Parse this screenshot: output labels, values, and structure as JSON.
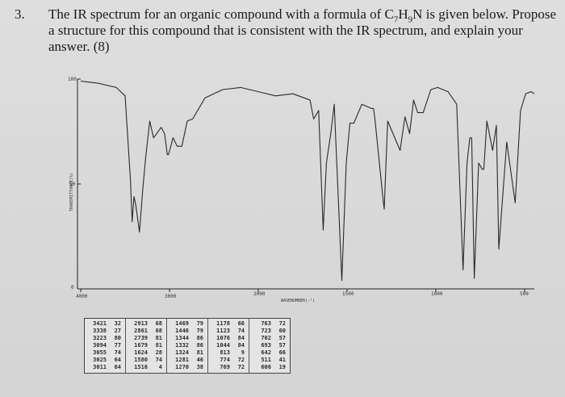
{
  "question": {
    "number": "3.",
    "text_part1": "The IR spectrum for an organic compound with a formula of C",
    "c_sub": "7",
    "h": "H",
    "h_sub": "9",
    "text_part2": "N is given below. Propose a structure for this compound that is consistent with the IR spectrum, and explain your answer. (8)"
  },
  "chart_data": {
    "type": "line",
    "xlabel": "WAVENUMBER(-¹)",
    "ylabel": "TRANSMITTANCE(%)",
    "y_ticks": [
      "100",
      "50",
      "0"
    ],
    "x_ticks": [
      "4000",
      "3000",
      "2000",
      "1500",
      "1000",
      "500"
    ],
    "ylim": [
      0,
      100
    ],
    "x_axis": "wavenumber, two-scale (4000–2000 and 2000–400)",
    "series": [
      {
        "points": [
          [
            4000,
            99
          ],
          [
            3800,
            98
          ],
          [
            3600,
            96
          ],
          [
            3500,
            92
          ],
          [
            3470,
            72
          ],
          [
            3440,
            52
          ],
          [
            3421,
            32
          ],
          [
            3400,
            44
          ],
          [
            3380,
            40
          ],
          [
            3338,
            27
          ],
          [
            3300,
            48
          ],
          [
            3270,
            62
          ],
          [
            3223,
            80
          ],
          [
            3180,
            72
          ],
          [
            3094,
            77
          ],
          [
            3055,
            74
          ],
          [
            3025,
            64
          ],
          [
            3011,
            64
          ],
          [
            2960,
            72
          ],
          [
            2913,
            68
          ],
          [
            2861,
            68
          ],
          [
            2800,
            80
          ],
          [
            2739,
            81
          ],
          [
            2600,
            91
          ],
          [
            2400,
            95
          ],
          [
            2200,
            96
          ],
          [
            2100,
            95
          ],
          [
            2000,
            94
          ],
          [
            1900,
            92
          ],
          [
            1800,
            93
          ],
          [
            1700,
            90
          ],
          [
            1679,
            81
          ],
          [
            1650,
            85
          ],
          [
            1624,
            28
          ],
          [
            1605,
            60
          ],
          [
            1580,
            74
          ],
          [
            1560,
            88
          ],
          [
            1516,
            4
          ],
          [
            1490,
            60
          ],
          [
            1469,
            79
          ],
          [
            1446,
            79
          ],
          [
            1400,
            88
          ],
          [
            1344,
            86
          ],
          [
            1332,
            86
          ],
          [
            1324,
            81
          ],
          [
            1281,
            46
          ],
          [
            1270,
            38
          ],
          [
            1250,
            80
          ],
          [
            1178,
            66
          ],
          [
            1150,
            82
          ],
          [
            1123,
            74
          ],
          [
            1100,
            90
          ],
          [
            1076,
            84
          ],
          [
            1044,
            84
          ],
          [
            1000,
            95
          ],
          [
            960,
            96
          ],
          [
            900,
            94
          ],
          [
            850,
            88
          ],
          [
            813,
            9
          ],
          [
            790,
            60
          ],
          [
            774,
            72
          ],
          [
            769,
            72
          ],
          [
            763,
            72
          ],
          [
            748,
            5
          ],
          [
            723,
            60
          ],
          [
            702,
            57
          ],
          [
            693,
            57
          ],
          [
            675,
            80
          ],
          [
            642,
            66
          ],
          [
            620,
            78
          ],
          [
            606,
            19
          ],
          [
            560,
            70
          ],
          [
            511,
            41
          ],
          [
            480,
            85
          ],
          [
            450,
            93
          ],
          [
            420,
            94
          ],
          [
            400,
            93
          ]
        ]
      }
    ]
  },
  "peak_table": [
    [
      [
        "3421",
        "32"
      ],
      [
        "3338",
        "27"
      ],
      [
        "3223",
        "80"
      ],
      [
        "3094",
        "77"
      ],
      [
        "3055",
        "74"
      ],
      [
        "3025",
        "64"
      ],
      [
        "3011",
        "64"
      ]
    ],
    [
      [
        "2913",
        "68"
      ],
      [
        "2861",
        "68"
      ],
      [
        "2739",
        "81"
      ],
      [
        "1679",
        "81"
      ],
      [
        "1624",
        "28"
      ],
      [
        "1580",
        "74"
      ],
      [
        "1516",
        "4"
      ]
    ],
    [
      [
        "1469",
        "79"
      ],
      [
        "1446",
        "79"
      ],
      [
        "1344",
        "86"
      ],
      [
        "1332",
        "86"
      ],
      [
        "1324",
        "81"
      ],
      [
        "1281",
        "46"
      ],
      [
        "1270",
        "38"
      ]
    ],
    [
      [
        "1178",
        "66"
      ],
      [
        "1123",
        "74"
      ],
      [
        "1076",
        "84"
      ],
      [
        "1044",
        "84"
      ],
      [
        "813",
        "9"
      ],
      [
        "774",
        "72"
      ],
      [
        "769",
        "72"
      ]
    ],
    [
      [
        "763",
        "72"
      ],
      [
        "723",
        "60"
      ],
      [
        "702",
        "57"
      ],
      [
        "693",
        "57"
      ],
      [
        "642",
        "66"
      ],
      [
        "511",
        "41"
      ],
      [
        "606",
        "19"
      ]
    ]
  ]
}
